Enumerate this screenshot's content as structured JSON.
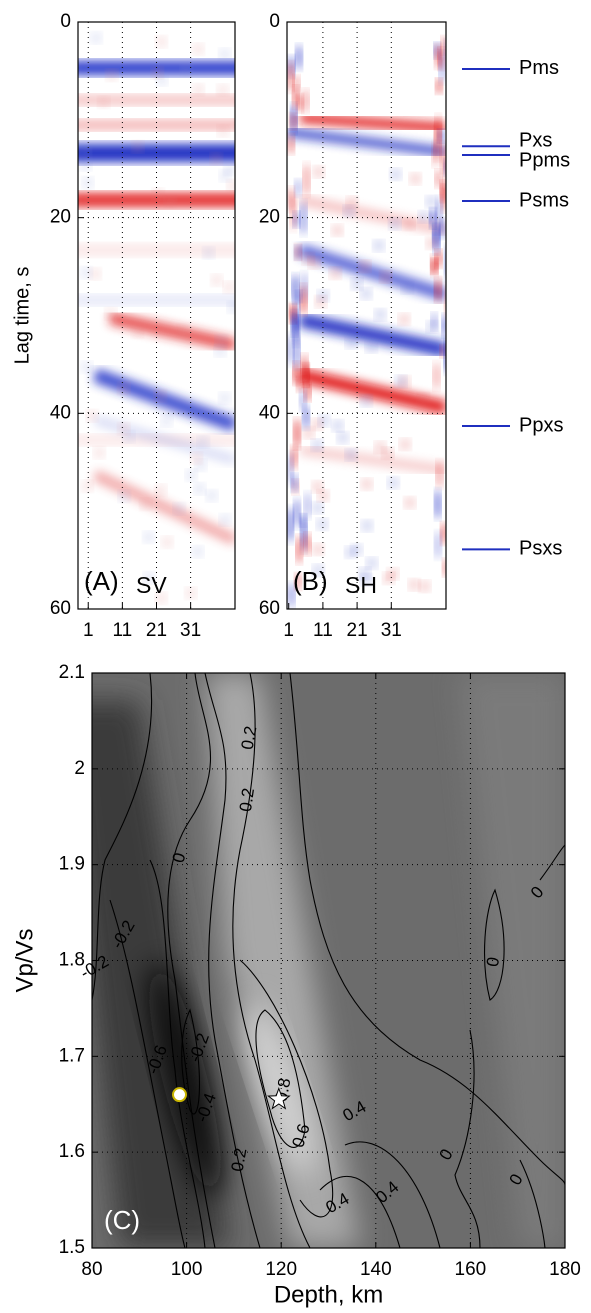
{
  "chart_data": [
    {
      "type": "heatmap",
      "panel_label": "(A)",
      "component": "SV",
      "ylabel": "Lag time, s",
      "xlim": [
        -2,
        44
      ],
      "xticks": [
        1,
        11,
        21,
        31
      ],
      "ylim": [
        0,
        60
      ],
      "yticks": [
        0,
        20,
        40,
        60
      ],
      "y_reversed": true,
      "grid": true
    },
    {
      "type": "heatmap",
      "panel_label": "(B)",
      "component": "SH",
      "xlim": [
        0.5,
        47
      ],
      "xticks": [
        1,
        11,
        21,
        31
      ],
      "ylim": [
        0,
        60
      ],
      "yticks": [
        0,
        20,
        40,
        60
      ],
      "y_reversed": true,
      "grid": true,
      "marker_color": "#1f2fbf",
      "phase_markers": [
        {
          "label": "Pms",
          "y": 4.8
        },
        {
          "label": "Pxs",
          "y": 12.7
        },
        {
          "label": "Ppms",
          "y": 13.6
        },
        {
          "label": "Psms",
          "y": 18.3
        },
        {
          "label": "Ppxs",
          "y": 41.3
        },
        {
          "label": "Psxs",
          "y": 53.9
        }
      ]
    },
    {
      "type": "contour",
      "panel_label": "(C)",
      "xlabel": "Depth, km",
      "ylabel": "Vp/Vs",
      "xlim": [
        80,
        180
      ],
      "xticks": [
        80,
        100,
        120,
        140,
        160,
        180
      ],
      "ylim": [
        1.5,
        2.1
      ],
      "yticks": [
        1.5,
        1.6,
        1.7,
        1.8,
        1.9,
        2,
        2.1
      ],
      "grid": true,
      "contour_labels": [
        0.2,
        0.2,
        0,
        -0.2,
        -0.2,
        -0.6,
        -0.2,
        -0.4,
        0.8,
        0.6,
        0.2,
        0.4,
        0.4,
        0.4,
        0,
        0,
        0,
        0
      ],
      "markers": [
        {
          "x": 119.5,
          "y": 1.655,
          "symbol": "star",
          "color": "#ffffff"
        },
        {
          "x": 98.5,
          "y": 1.66,
          "symbol": "circle",
          "color": "#ffffff",
          "edge": "#c8b400"
        }
      ]
    }
  ]
}
